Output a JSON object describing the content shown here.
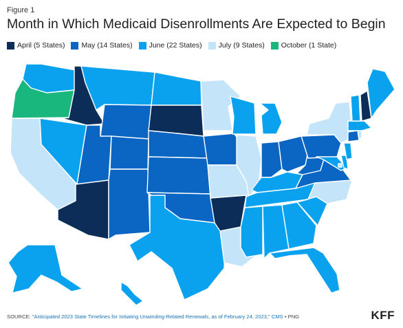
{
  "figure_label": "Figure 1",
  "title": "Month in Which Medicaid Disenrollments Are Expected to Begin",
  "legend": [
    {
      "label": "April (5 States)",
      "color": "#0c2d57"
    },
    {
      "label": "May (14 States)",
      "color": "#0a66c2"
    },
    {
      "label": "June (22 States)",
      "color": "#0aa2ef"
    },
    {
      "label": "July (9 States)",
      "color": "#c4e4f9"
    },
    {
      "label": "October (1 State)",
      "color": "#19b67e"
    }
  ],
  "categories": {
    "april": [
      "WA_ID",
      "AZ",
      "SD",
      "AR",
      "NH"
    ],
    "may": [
      "MT_WY",
      "UT",
      "CO",
      "NM",
      "NE",
      "KS",
      "OK",
      "IA",
      "IN",
      "OH",
      "WV",
      "VA",
      "PA",
      "CT"
    ],
    "june": [
      "WA",
      "NV",
      "ND",
      "WI",
      "MI",
      "KY",
      "TN",
      "MS",
      "AL",
      "GA",
      "SC",
      "FL",
      "TX",
      "AK",
      "HI",
      "ME",
      "VT",
      "MA",
      "NJ",
      "MD",
      "DE",
      "MT"
    ],
    "july": [
      "CA",
      "MN",
      "IL",
      "MO",
      "LA",
      "NY",
      "NC",
      "RI",
      "DC"
    ],
    "october": [
      "OR"
    ]
  },
  "source": {
    "prefix": "SOURCE: ",
    "link": "\"Anticipated 2023 State Timelines for Initiating Unwinding-Related Renewals, as of February 24, 2023,\" CMS",
    "suffix": " • PNG"
  },
  "logo": "KFF"
}
